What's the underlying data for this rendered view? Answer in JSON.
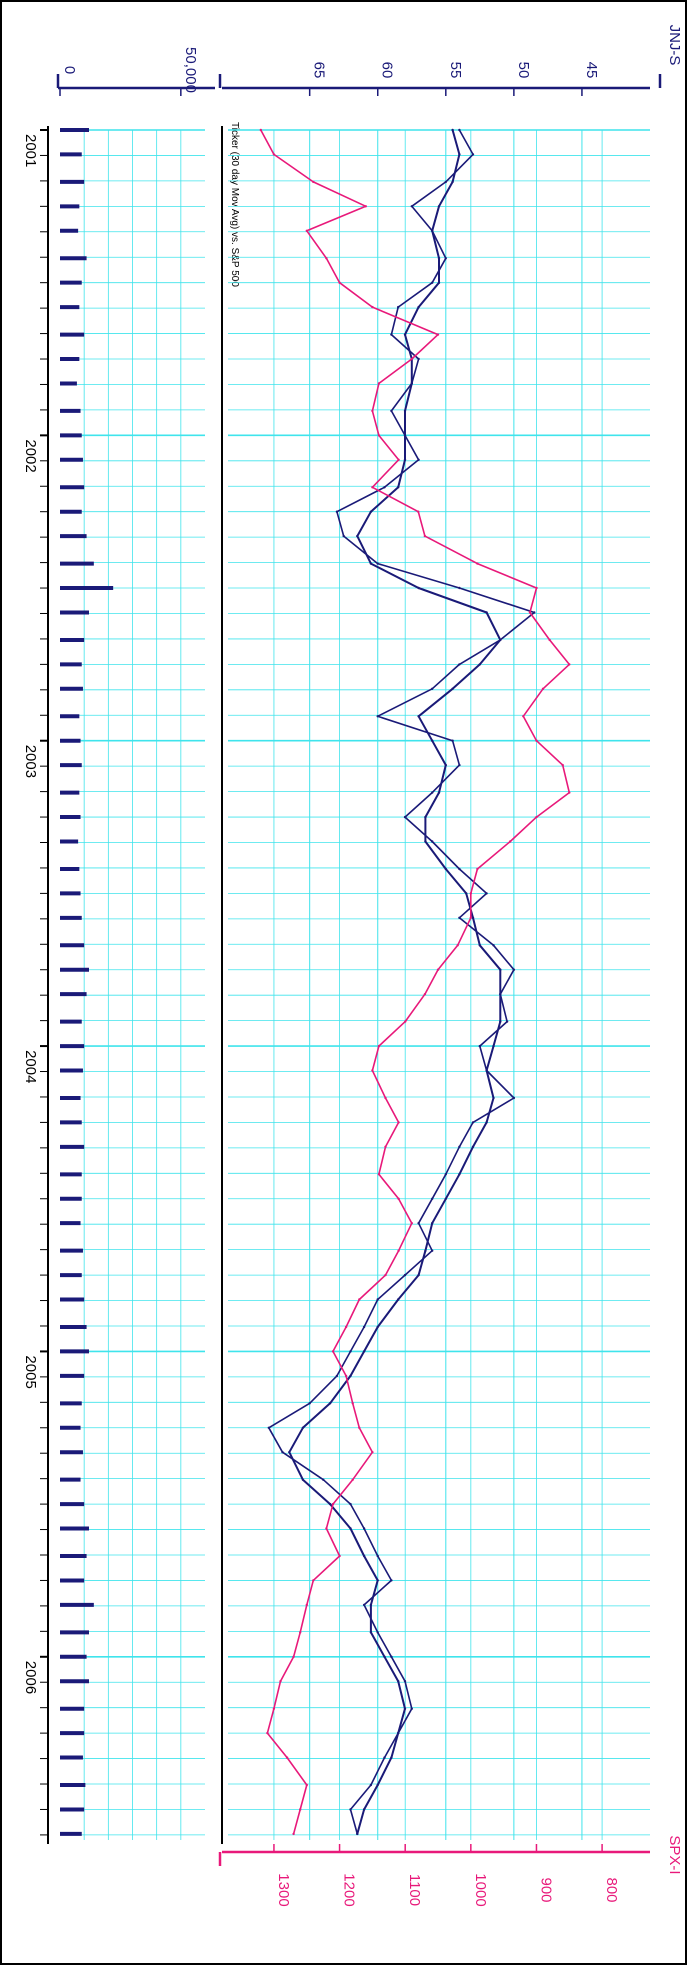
{
  "chart_data": {
    "type": "line",
    "orientation": "rotated-90-clockwise",
    "grid": true,
    "colors": {
      "primary": "#1a1a78",
      "secondary": "#e8197a",
      "grid": "#3fe4ec",
      "frame": "#000000"
    },
    "time_axis": {
      "range": [
        2001.0,
        2006.6
      ],
      "labels": [
        "2001",
        "2002",
        "2003",
        "2004",
        "2005",
        "2006"
      ],
      "label_values": [
        2001,
        2002,
        2003,
        2004,
        2005,
        2006
      ]
    },
    "price_panel": {
      "annotation": "Ticker (30 day Mov Avg) vs. S&P 500",
      "left_axis": {
        "label": "JNJ-S",
        "range": [
          40,
          71
        ],
        "ticks": [
          45,
          50,
          55,
          60,
          65
        ],
        "tick_labels": [
          "45",
          "50",
          "55",
          "60",
          "65"
        ]
      },
      "right_axis": {
        "label": "SPX-I",
        "range": [
          727,
          1370
        ],
        "ticks": [
          800,
          900,
          1000,
          1100,
          1200,
          1300
        ],
        "tick_labels": [
          "800",
          "900",
          "1000",
          "1100",
          "1200",
          "1300"
        ]
      },
      "series": [
        {
          "name": "JNJ-S",
          "color": "#1a1a78",
          "x": [
            2001.0,
            2001.08,
            2001.17,
            2001.25,
            2001.33,
            2001.42,
            2001.5,
            2001.58,
            2001.67,
            2001.75,
            2001.83,
            2001.92,
            2002.0,
            2002.08,
            2002.17,
            2002.25,
            2002.33,
            2002.42,
            2002.5,
            2002.58,
            2002.67,
            2002.75,
            2002.83,
            2002.92,
            2003.0,
            2003.08,
            2003.17,
            2003.25,
            2003.33,
            2003.42,
            2003.5,
            2003.58,
            2003.67,
            2003.75,
            2003.83,
            2003.92,
            2004.0,
            2004.08,
            2004.17,
            2004.25,
            2004.33,
            2004.42,
            2004.5,
            2004.58,
            2004.67,
            2004.75,
            2004.83,
            2004.92,
            2005.0,
            2005.08,
            2005.17,
            2005.25,
            2005.33,
            2005.42,
            2005.5,
            2005.58,
            2005.67,
            2005.75,
            2005.83,
            2005.92,
            2006.0,
            2006.08,
            2006.17,
            2006.25,
            2006.33,
            2006.42,
            2006.5,
            2006.58
          ],
          "values": [
            54,
            53,
            55,
            57.5,
            56,
            55,
            56,
            58.5,
            59,
            57,
            57.5,
            59,
            58,
            57,
            59.5,
            63,
            62.5,
            60,
            54,
            48.5,
            51,
            54,
            56,
            60,
            54.5,
            54,
            56,
            58,
            56,
            54,
            52,
            54,
            51.5,
            50,
            51,
            50.5,
            52.5,
            52,
            50,
            53,
            54,
            55,
            56,
            57,
            56,
            58,
            60,
            61,
            62,
            63,
            65,
            68,
            67,
            64,
            62,
            61,
            60,
            59,
            61,
            60,
            59,
            58,
            57.5,
            58.5,
            59.5,
            60.5,
            62,
            61.5
          ]
        },
        {
          "name": "JNJ-S 30 day Mov Avg",
          "color": "#1a1a78",
          "x": [
            2001.0,
            2001.08,
            2001.17,
            2001.25,
            2001.33,
            2001.42,
            2001.5,
            2001.58,
            2001.67,
            2001.75,
            2001.83,
            2001.92,
            2002.0,
            2002.08,
            2002.17,
            2002.25,
            2002.33,
            2002.42,
            2002.5,
            2002.58,
            2002.67,
            2002.75,
            2002.83,
            2002.92,
            2003.0,
            2003.08,
            2003.17,
            2003.25,
            2003.33,
            2003.42,
            2003.5,
            2003.58,
            2003.67,
            2003.75,
            2003.83,
            2003.92,
            2004.0,
            2004.08,
            2004.17,
            2004.25,
            2004.33,
            2004.42,
            2004.5,
            2004.58,
            2004.67,
            2004.75,
            2004.83,
            2004.92,
            2005.0,
            2005.08,
            2005.17,
            2005.25,
            2005.33,
            2005.42,
            2005.5,
            2005.58,
            2005.67,
            2005.75,
            2005.83,
            2005.92,
            2006.0,
            2006.08,
            2006.17,
            2006.25,
            2006.33,
            2006.42,
            2006.5,
            2006.58
          ],
          "values": [
            54.5,
            54,
            54.5,
            55.5,
            56,
            55.5,
            55.5,
            57,
            58,
            57.5,
            57.5,
            58,
            58,
            58,
            58.5,
            60.5,
            61.5,
            60.5,
            57,
            52,
            51,
            52.5,
            54.5,
            57,
            56,
            55,
            55.5,
            56.5,
            56.5,
            55,
            53.5,
            53,
            52.5,
            51,
            51,
            51,
            51.5,
            52,
            51.5,
            52,
            53,
            54,
            55,
            56,
            56.5,
            57,
            58.5,
            60,
            61,
            62,
            63.5,
            65.5,
            66.5,
            65.5,
            63.5,
            62,
            61,
            60,
            60.5,
            60.5,
            59.5,
            58.5,
            58,
            58.5,
            59,
            60,
            61,
            61.5
          ]
        },
        {
          "name": "SPX-I",
          "color": "#e8197a",
          "x": [
            2001.0,
            2001.08,
            2001.17,
            2001.25,
            2001.33,
            2001.42,
            2001.5,
            2001.58,
            2001.67,
            2001.75,
            2001.83,
            2001.92,
            2002.0,
            2002.08,
            2002.17,
            2002.25,
            2002.33,
            2002.42,
            2002.5,
            2002.58,
            2002.67,
            2002.75,
            2002.83,
            2002.92,
            2003.0,
            2003.08,
            2003.17,
            2003.25,
            2003.33,
            2003.42,
            2003.5,
            2003.58,
            2003.67,
            2003.75,
            2003.83,
            2003.92,
            2004.0,
            2004.08,
            2004.17,
            2004.25,
            2004.33,
            2004.42,
            2004.5,
            2004.58,
            2004.67,
            2004.75,
            2004.83,
            2004.92,
            2005.0,
            2005.08,
            2005.17,
            2005.25,
            2005.33,
            2005.42,
            2005.5,
            2005.58,
            2005.67,
            2005.75,
            2005.83,
            2005.92,
            2006.0,
            2006.08,
            2006.17,
            2006.25,
            2006.33,
            2006.42,
            2006.5,
            2006.58
          ],
          "values": [
            1320,
            1300,
            1240,
            1160,
            1250,
            1220,
            1200,
            1150,
            1050,
            1090,
            1140,
            1150,
            1140,
            1110,
            1150,
            1080,
            1070,
            990,
            900,
            910,
            880,
            850,
            890,
            920,
            900,
            860,
            850,
            900,
            940,
            990,
            1000,
            1000,
            1020,
            1050,
            1070,
            1100,
            1140,
            1150,
            1130,
            1110,
            1130,
            1140,
            1110,
            1090,
            1110,
            1130,
            1170,
            1190,
            1210,
            1190,
            1180,
            1170,
            1150,
            1180,
            1210,
            1220,
            1200,
            1240,
            1250,
            1260,
            1270,
            1290,
            1300,
            1310,
            1280,
            1250,
            1260,
            1270
          ]
        }
      ]
    },
    "volume_panel": {
      "axis": {
        "range": [
          0,
          60000
        ],
        "ticks": [
          0,
          50000
        ],
        "tick_labels": [
          "0",
          "50,000"
        ]
      },
      "series": {
        "name": "Volume",
        "color": "#1a1a78",
        "x": [
          2001.0,
          2001.08,
          2001.17,
          2001.25,
          2001.33,
          2001.42,
          2001.5,
          2001.58,
          2001.67,
          2001.75,
          2001.83,
          2001.92,
          2002.0,
          2002.08,
          2002.17,
          2002.25,
          2002.33,
          2002.42,
          2002.5,
          2002.58,
          2002.67,
          2002.75,
          2002.83,
          2002.92,
          2003.0,
          2003.08,
          2003.17,
          2003.25,
          2003.33,
          2003.42,
          2003.5,
          2003.58,
          2003.67,
          2003.75,
          2003.83,
          2003.92,
          2004.0,
          2004.08,
          2004.17,
          2004.25,
          2004.33,
          2004.42,
          2004.5,
          2004.58,
          2004.67,
          2004.75,
          2004.83,
          2004.92,
          2005.0,
          2005.08,
          2005.17,
          2005.25,
          2005.33,
          2005.42,
          2005.5,
          2005.58,
          2005.67,
          2005.75,
          2005.83,
          2005.92,
          2006.0,
          2006.08,
          2006.17,
          2006.25,
          2006.33,
          2006.42,
          2006.5,
          2006.58
        ],
        "values": [
          12000,
          9000,
          10000,
          8000,
          7500,
          11000,
          9000,
          8000,
          10000,
          8000,
          7000,
          8500,
          9000,
          9500,
          10000,
          9000,
          11000,
          14000,
          22000,
          12000,
          10000,
          9000,
          9500,
          8000,
          8500,
          9000,
          8000,
          8500,
          7500,
          8000,
          8500,
          9000,
          10000,
          12000,
          11000,
          9000,
          10000,
          9500,
          8500,
          9000,
          10000,
          9000,
          9000,
          8500,
          9500,
          9000,
          10000,
          11000,
          12000,
          10000,
          9000,
          8500,
          9500,
          8500,
          10000,
          12000,
          11000,
          10000,
          14000,
          12000,
          11000,
          12000,
          10000,
          10000,
          9500,
          10500,
          10000,
          9000
        ]
      }
    }
  }
}
